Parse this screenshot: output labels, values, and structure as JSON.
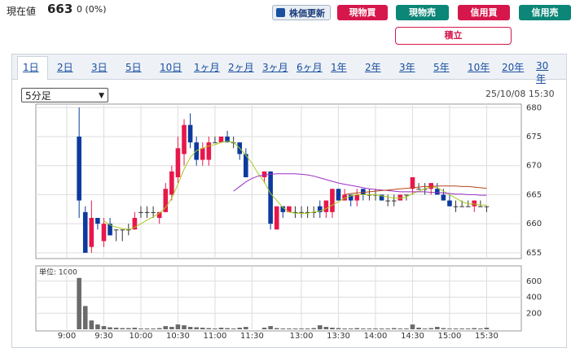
{
  "header": {
    "price_label": "現在値",
    "price": "663",
    "change": "0 (0%)"
  },
  "buttons": [
    "株価更新",
    "現物買",
    "現物売",
    "信用買",
    "信用売",
    "積立"
  ],
  "tabs": [
    "1日",
    "2日",
    "3日",
    "5日",
    "10日",
    "1ヶ月",
    "2ヶ月",
    "3ヶ月",
    "6ヶ月",
    "1年",
    "2年",
    "3年",
    "5年",
    "10年",
    "20年",
    "30年"
  ],
  "period_select": "5分足",
  "timestamp": "25/10/08 15:30",
  "chart_data": [
    {
      "type": "candlestick",
      "categories": [
        "9:00",
        null,
        null,
        null,
        null,
        null,
        "9:30",
        null,
        null,
        null,
        null,
        null,
        "10:00",
        null,
        null,
        null,
        null,
        null,
        "10:30",
        null,
        null,
        null,
        null,
        null,
        "11:00",
        null,
        null,
        null,
        null,
        null,
        "11:30",
        null,
        null,
        null,
        null,
        null,
        null,
        null,
        "13:00",
        null,
        null,
        null,
        null,
        null,
        "13:30",
        null,
        null,
        null,
        null,
        null,
        "14:00",
        null,
        null,
        null,
        null,
        null,
        "14:30",
        null,
        null,
        null,
        null,
        null,
        "15:00",
        null,
        null,
        null,
        null,
        null,
        "15:30"
      ],
      "open": [
        null,
        null,
        675,
        662,
        656,
        661,
        657,
        660,
        659,
        659,
        659,
        659,
        662,
        662,
        662,
        661,
        662,
        665,
        668,
        672,
        677,
        674,
        671,
        671,
        674,
        674,
        675,
        674,
        674,
        672,
        null,
        null,
        668,
        669,
        659,
        663,
        662,
        662,
        662,
        662,
        662,
        663,
        662,
        662,
        666,
        664,
        665,
        664,
        666,
        665,
        665,
        665,
        664,
        664,
        664,
        665,
        666,
        666,
        666,
        666,
        666,
        665,
        664,
        663,
        663,
        663,
        663,
        663,
        663
      ],
      "high": [
        null,
        null,
        680,
        663,
        664,
        661,
        661,
        661,
        659,
        659,
        660,
        662,
        663,
        663,
        663,
        662,
        667,
        670,
        675,
        678,
        679,
        675,
        674,
        675,
        675,
        675,
        676,
        675,
        674,
        673,
        null,
        null,
        669,
        669,
        663,
        663,
        663,
        663,
        663,
        663,
        663,
        664,
        664,
        666,
        666,
        666,
        665,
        666,
        666,
        666,
        666,
        665,
        665,
        665,
        665,
        665,
        668,
        667,
        667,
        667,
        667,
        666,
        665,
        664,
        664,
        664,
        664,
        664,
        663
      ],
      "low": [
        null,
        null,
        661,
        655,
        655,
        659,
        656,
        658,
        657,
        657,
        658,
        659,
        661,
        661,
        661,
        660,
        662,
        664,
        667,
        670,
        673,
        670,
        670,
        670,
        674,
        674,
        674,
        673,
        671,
        668,
        null,
        null,
        667,
        659,
        659,
        661,
        662,
        661,
        661,
        661,
        661,
        661,
        661,
        661,
        664,
        664,
        663,
        663,
        664,
        664,
        664,
        664,
        663,
        663,
        664,
        664,
        665,
        666,
        665,
        665,
        665,
        664,
        663,
        662,
        663,
        663,
        662,
        663,
        662
      ],
      "close": [
        null,
        null,
        664,
        655,
        661,
        660,
        660,
        658,
        659,
        659,
        659,
        661,
        662,
        662,
        662,
        662,
        666,
        669,
        673,
        677,
        674,
        671,
        673,
        674,
        674,
        675,
        674,
        674,
        672,
        668,
        null,
        null,
        669,
        660,
        663,
        662,
        663,
        662,
        662,
        662,
        662,
        662,
        664,
        666,
        664,
        665,
        664,
        665,
        665,
        665,
        665,
        664,
        664,
        664,
        665,
        665,
        668,
        666,
        666,
        667,
        665,
        664,
        663,
        663,
        663,
        663,
        664,
        663,
        663
      ],
      "up_color": "#e8174a",
      "down_color": "#0c3a9e",
      "series": [
        {
          "color": "#a8cc1c",
          "values": [
            null,
            null,
            null,
            null,
            null,
            null,
            660.5,
            659.8,
            659.4,
            659.2,
            659.0,
            659.4,
            660.0,
            660.6,
            661.2,
            661.8,
            662.8,
            664.4,
            666.8,
            669.4,
            671.4,
            672.6,
            673.0,
            673.4,
            673.6,
            674.0,
            674.2,
            674.0,
            673.0,
            671.8,
            670.4,
            668.6,
            667.2,
            665.2,
            664.0,
            662.8,
            662.0,
            661.8,
            661.8,
            661.8,
            662.0,
            662.2,
            662.6,
            663.2,
            663.8,
            664.4,
            664.8,
            665.0,
            665.0,
            665.0,
            665.0,
            664.8,
            664.6,
            664.4,
            664.4,
            664.6,
            665.2,
            665.6,
            666.0,
            666.4,
            666.2,
            665.6,
            665.0,
            664.4,
            663.8,
            663.4,
            663.4,
            663.2,
            663.2
          ]
        },
        {
          "color": "#9b2fc4",
          "values": [
            null,
            null,
            null,
            null,
            null,
            null,
            null,
            null,
            null,
            null,
            null,
            null,
            null,
            null,
            null,
            null,
            null,
            null,
            null,
            null,
            null,
            null,
            null,
            null,
            null,
            null,
            null,
            665.6,
            666.4,
            667.2,
            667.8,
            668.2,
            668.4,
            668.5,
            668.6,
            668.6,
            668.6,
            668.6,
            668.5,
            668.4,
            668.2,
            667.9,
            667.6,
            667.3,
            667.0,
            666.8,
            666.6,
            666.4,
            666.2,
            666.0,
            665.9,
            665.8,
            665.7,
            665.6,
            665.5,
            665.5,
            665.5,
            665.5,
            665.5,
            665.4,
            665.4,
            665.3,
            665.2,
            665.1,
            665.1,
            665.0,
            665.0,
            664.9,
            664.9
          ]
        },
        {
          "color": "#b5461c",
          "values": [
            null,
            null,
            null,
            null,
            null,
            null,
            null,
            null,
            null,
            null,
            null,
            null,
            null,
            null,
            null,
            null,
            null,
            null,
            null,
            null,
            null,
            null,
            null,
            null,
            null,
            null,
            null,
            null,
            null,
            null,
            null,
            null,
            null,
            null,
            null,
            null,
            null,
            null,
            null,
            null,
            null,
            null,
            null,
            null,
            null,
            665.0,
            665.2,
            665.3,
            665.4,
            665.5,
            665.6,
            665.7,
            665.8,
            665.9,
            666.0,
            666.1,
            666.2,
            666.3,
            666.4,
            666.4,
            666.5,
            666.5,
            666.5,
            666.5,
            666.4,
            666.4,
            666.3,
            666.2,
            666.1
          ]
        }
      ],
      "ylim": [
        654,
        680.6
      ],
      "yticks": [
        655,
        660,
        665,
        670,
        675,
        680
      ],
      "grid": true
    },
    {
      "type": "bar",
      "unit_label": "単位: 1000",
      "color": "#6b6b6b",
      "values": [
        null,
        null,
        640,
        290,
        110,
        60,
        40,
        25,
        20,
        15,
        15,
        20,
        10,
        10,
        10,
        15,
        40,
        30,
        60,
        50,
        30,
        25,
        20,
        15,
        10,
        20,
        15,
        10,
        20,
        30,
        null,
        null,
        20,
        40,
        15,
        10,
        10,
        10,
        10,
        10,
        15,
        50,
        30,
        20,
        15,
        10,
        10,
        15,
        10,
        10,
        10,
        10,
        10,
        15,
        10,
        10,
        60,
        20,
        10,
        15,
        30,
        15,
        10,
        10,
        10,
        10,
        15,
        10,
        20
      ],
      "ylim": [
        0,
        790
      ],
      "yticks": [
        200,
        400,
        600
      ],
      "grid": true
    }
  ]
}
